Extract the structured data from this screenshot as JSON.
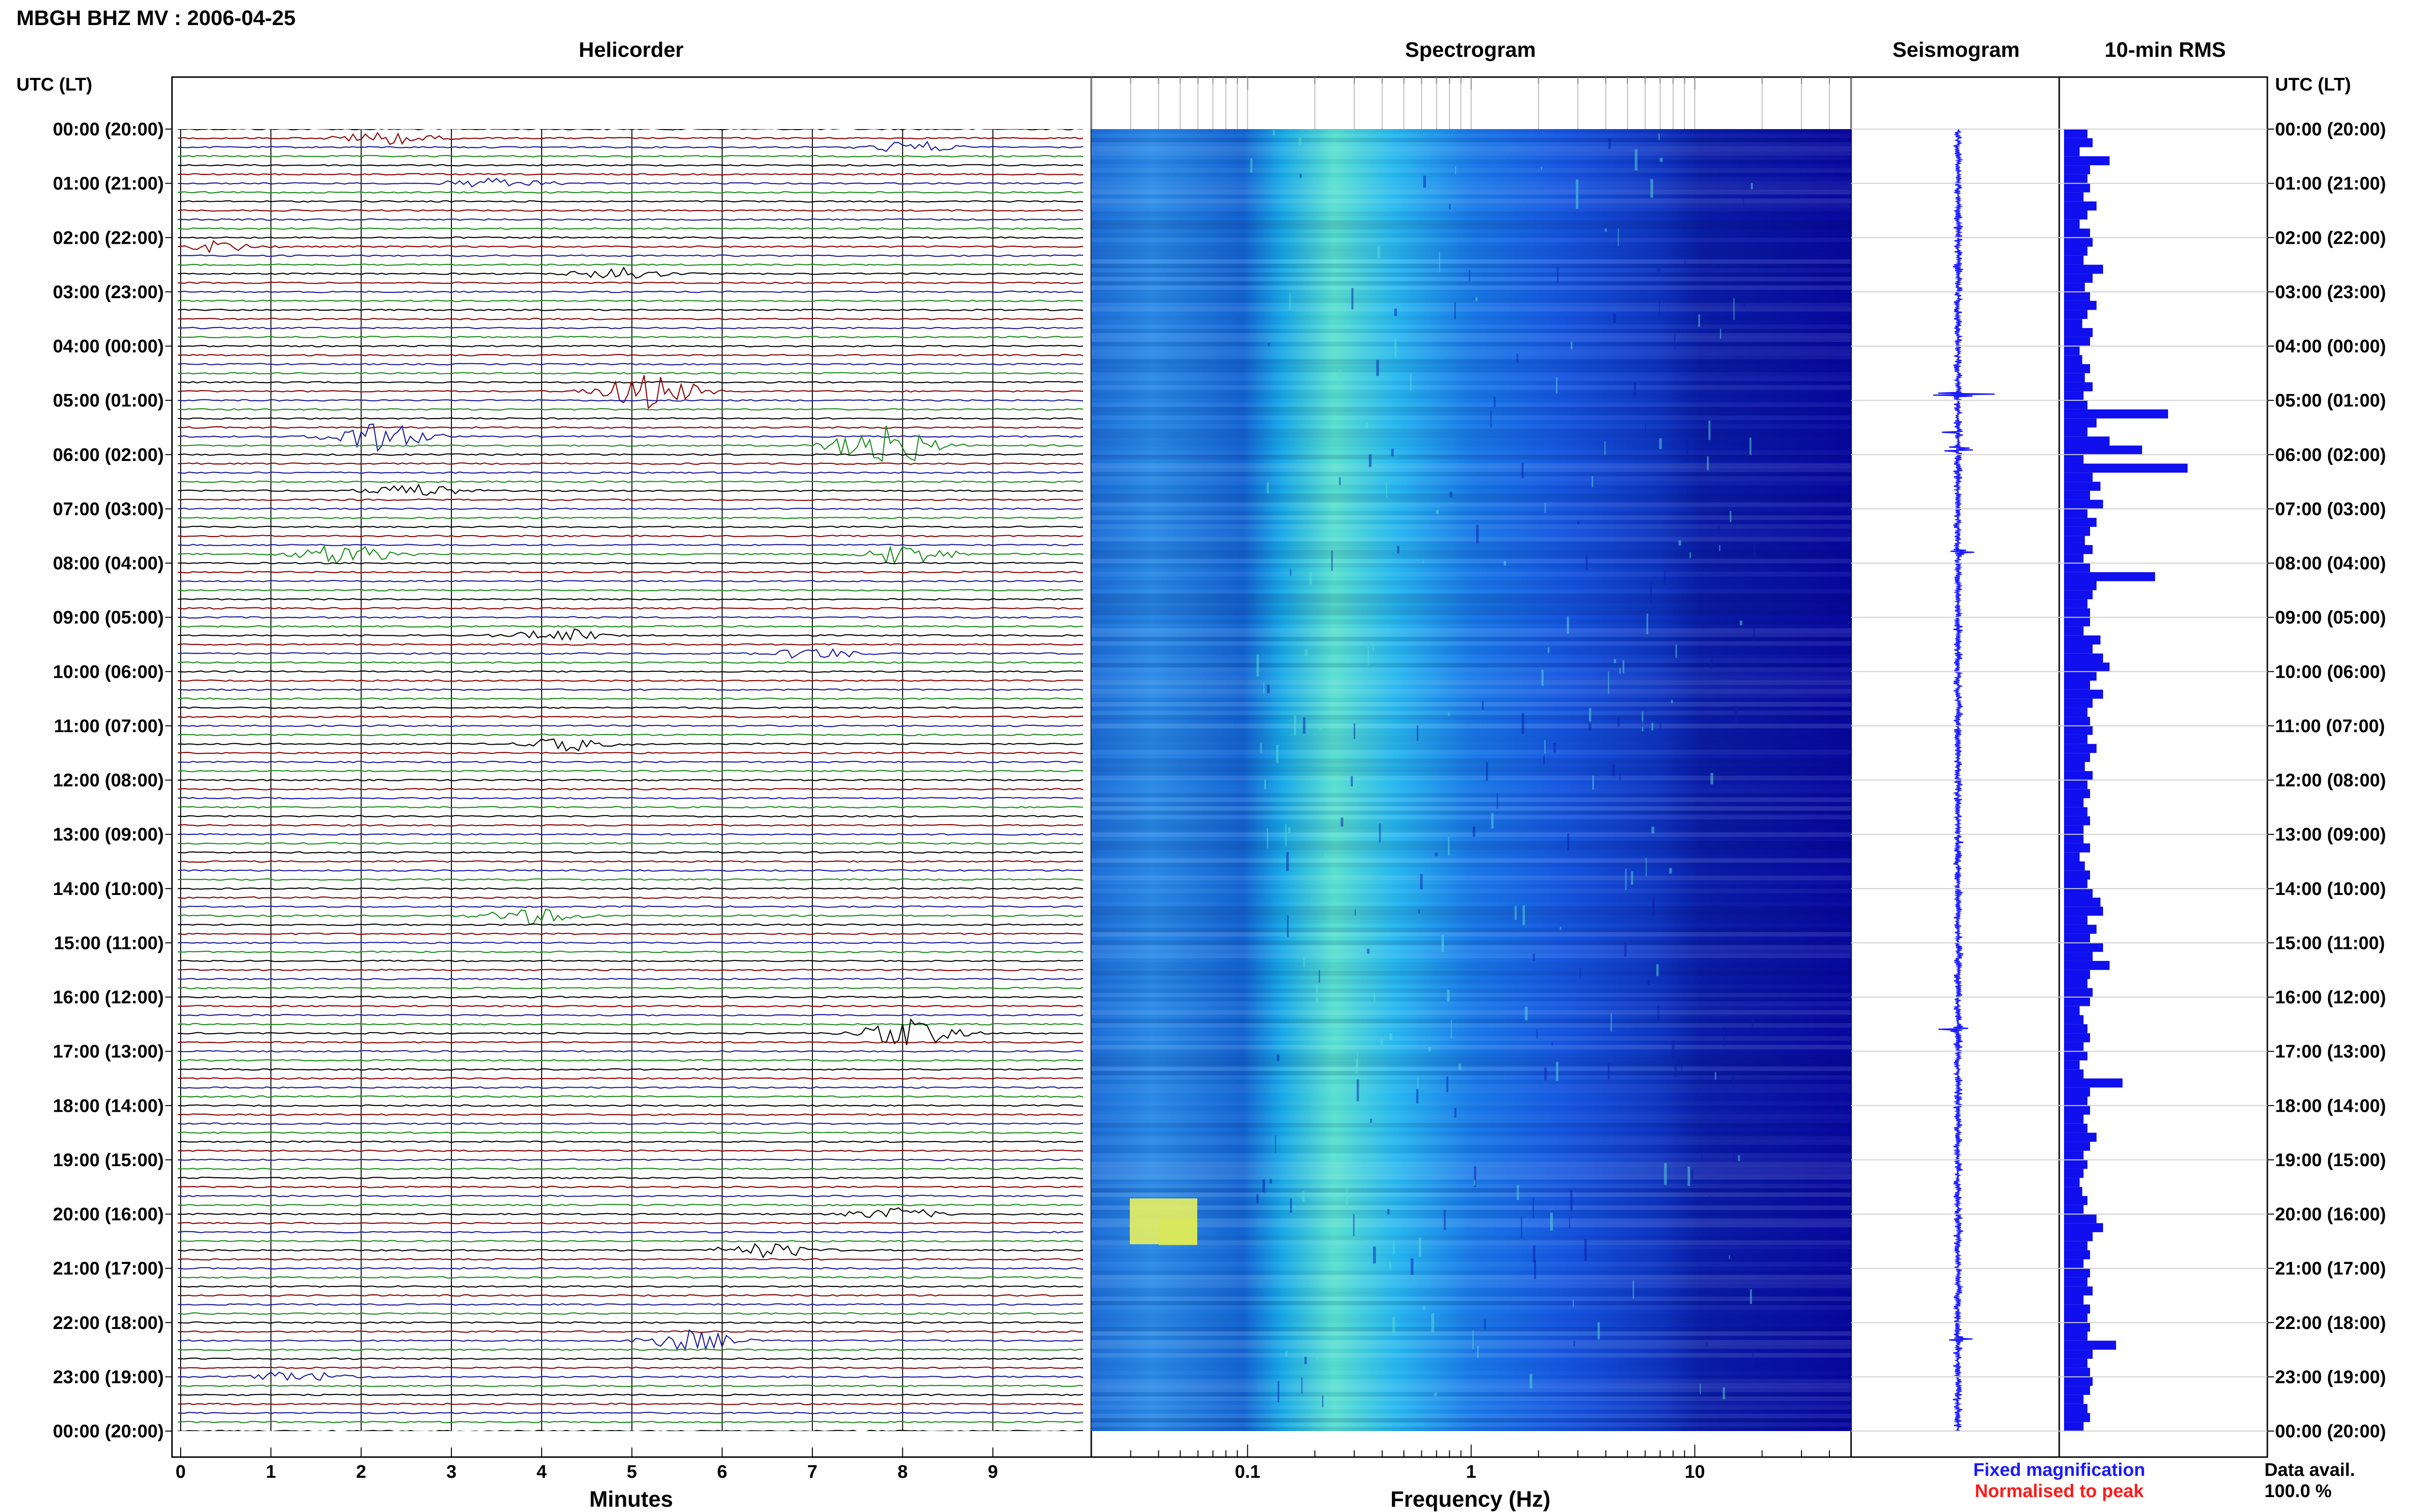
{
  "header": {
    "station_title": "MBGH BHZ MV : 2006-04-25",
    "time_axis_label_left": "UTC (LT)",
    "time_axis_label_right": "UTC (LT)"
  },
  "panels": {
    "helicorder_title": "Helicorder",
    "spectrogram_title": "Spectrogram",
    "seismogram_title": "Seismogram",
    "rms_title": "10-min RMS"
  },
  "legend": {
    "fixed": "Fixed magnification",
    "normalised": "Normalised to peak",
    "fixed_color": "#1a1aff",
    "normalised_color": "#ff1a1a"
  },
  "data_avail": {
    "label": "Data avail.",
    "value": "100.0 %"
  },
  "colors": {
    "trace_cycle": [
      "#000000",
      "#8b0000",
      "#1a1a9c",
      "#1a8c1a"
    ],
    "seismogram": "#1a1aff",
    "rms_bar": "#1010ee",
    "spectrogram_low": "#08089e",
    "spectrogram_high": "#f0f060"
  },
  "chart_data": [
    {
      "type": "line",
      "name": "helicorder",
      "title": "Helicorder",
      "xlabel": "Minutes",
      "x_ticks": [
        "0",
        "1",
        "2",
        "3",
        "4",
        "5",
        "6",
        "7",
        "8",
        "9"
      ],
      "xlim": [
        0,
        10
      ],
      "row_labels": [
        "00:00 (20:00)",
        "01:00 (21:00)",
        "02:00 (22:00)",
        "03:00 (23:00)",
        "04:00 (00:00)",
        "05:00 (01:00)",
        "06:00 (02:00)",
        "07:00 (03:00)",
        "08:00 (04:00)",
        "09:00 (05:00)",
        "10:00 (06:00)",
        "11:00 (07:00)",
        "12:00 (08:00)",
        "13:00 (09:00)",
        "14:00 (10:00)",
        "15:00 (11:00)",
        "16:00 (12:00)",
        "17:00 (13:00)",
        "18:00 (14:00)",
        "19:00 (15:00)",
        "20:00 (16:00)",
        "21:00 (17:00)",
        "22:00 (18:00)",
        "23:00 (19:00)",
        "00:00 (20:00)"
      ],
      "traces_per_hour": 6,
      "events": [
        {
          "hour": 0.1,
          "minute": 2.3,
          "amp": 0.35
        },
        {
          "hour": 0.3,
          "minute": 8.1,
          "amp": 0.3
        },
        {
          "hour": 1.0,
          "minute": 3.5,
          "amp": 0.3
        },
        {
          "hour": 2.1,
          "minute": 0.3,
          "amp": 0.3
        },
        {
          "hour": 2.6,
          "minute": 4.9,
          "amp": 0.4
        },
        {
          "hour": 4.9,
          "minute": 5.2,
          "amp": 0.9
        },
        {
          "hour": 5.6,
          "minute": 2.2,
          "amp": 0.75
        },
        {
          "hour": 5.9,
          "minute": 7.8,
          "amp": 1.2
        },
        {
          "hour": 6.6,
          "minute": 2.6,
          "amp": 0.35
        },
        {
          "hour": 7.8,
          "minute": 1.8,
          "amp": 0.55
        },
        {
          "hour": 7.8,
          "minute": 8.0,
          "amp": 0.5
        },
        {
          "hour": 9.3,
          "minute": 4.2,
          "amp": 0.35
        },
        {
          "hour": 9.7,
          "minute": 7.0,
          "amp": 0.3
        },
        {
          "hour": 11.3,
          "minute": 4.3,
          "amp": 0.35
        },
        {
          "hour": 14.5,
          "minute": 3.9,
          "amp": 0.45
        },
        {
          "hour": 16.6,
          "minute": 8.1,
          "amp": 0.7
        },
        {
          "hour": 20.0,
          "minute": 7.9,
          "amp": 0.35
        },
        {
          "hour": 20.6,
          "minute": 6.5,
          "amp": 0.4
        },
        {
          "hour": 22.3,
          "minute": 5.6,
          "amp": 0.55
        },
        {
          "hour": 23.0,
          "minute": 1.3,
          "amp": 0.3
        }
      ]
    },
    {
      "type": "heatmap",
      "name": "spectrogram",
      "title": "Spectrogram",
      "xlabel": "Frequency (Hz)",
      "x_scale": "log",
      "xlim": [
        0.02,
        50
      ],
      "x_ticks": [
        "0.1",
        "1",
        "10"
      ],
      "y_range_hours": [
        0,
        24
      ],
      "features": [
        {
          "band_hz": [
            0.15,
            0.5
          ],
          "level": "high"
        },
        {
          "band_hz": [
            0.02,
            0.15
          ],
          "level": "medium"
        },
        {
          "band_hz": [
            10,
            50
          ],
          "level": "low"
        },
        {
          "hour": 20.0,
          "band_hz": [
            0.03,
            0.08
          ],
          "level": "very-high"
        }
      ]
    },
    {
      "type": "line",
      "name": "seismogram",
      "title": "Seismogram",
      "y_range_hours": [
        0,
        24
      ],
      "spikes": [
        {
          "hour": 4.9,
          "amp": 1.0
        },
        {
          "hour": 5.6,
          "amp": 0.6
        },
        {
          "hour": 5.9,
          "amp": 0.9
        },
        {
          "hour": 7.8,
          "amp": 0.45
        },
        {
          "hour": 16.6,
          "amp": 0.3
        },
        {
          "hour": 22.3,
          "amp": 0.2
        }
      ]
    },
    {
      "type": "bar",
      "name": "rms",
      "title": "10-min RMS",
      "y_range_hours": [
        0,
        24
      ],
      "bins_per_hour": 6,
      "values": [
        0.18,
        0.22,
        0.12,
        0.35,
        0.2,
        0.18,
        0.2,
        0.15,
        0.25,
        0.18,
        0.12,
        0.2,
        0.22,
        0.18,
        0.15,
        0.3,
        0.22,
        0.16,
        0.2,
        0.25,
        0.18,
        0.14,
        0.22,
        0.2,
        0.12,
        0.14,
        0.2,
        0.16,
        0.22,
        0.15,
        0.18,
        0.8,
        0.25,
        0.18,
        0.35,
        0.6,
        0.15,
        0.95,
        0.22,
        0.28,
        0.2,
        0.3,
        0.18,
        0.25,
        0.2,
        0.16,
        0.22,
        0.15,
        0.2,
        0.7,
        0.25,
        0.22,
        0.18,
        0.2,
        0.2,
        0.15,
        0.28,
        0.22,
        0.3,
        0.35,
        0.25,
        0.2,
        0.3,
        0.22,
        0.18,
        0.2,
        0.22,
        0.18,
        0.25,
        0.2,
        0.16,
        0.22,
        0.18,
        0.2,
        0.15,
        0.18,
        0.2,
        0.15,
        0.15,
        0.2,
        0.12,
        0.16,
        0.2,
        0.18,
        0.22,
        0.28,
        0.3,
        0.18,
        0.25,
        0.2,
        0.3,
        0.22,
        0.35,
        0.2,
        0.18,
        0.22,
        0.2,
        0.12,
        0.15,
        0.18,
        0.2,
        0.15,
        0.18,
        0.12,
        0.15,
        0.45,
        0.2,
        0.18,
        0.2,
        0.15,
        0.18,
        0.25,
        0.2,
        0.15,
        0.18,
        0.15,
        0.12,
        0.14,
        0.18,
        0.15,
        0.25,
        0.3,
        0.22,
        0.18,
        0.2,
        0.15,
        0.2,
        0.18,
        0.22,
        0.15,
        0.2,
        0.18,
        0.2,
        0.18,
        0.4,
        0.22,
        0.18,
        0.2,
        0.22,
        0.2,
        0.15,
        0.18,
        0.2,
        0.15
      ]
    }
  ]
}
